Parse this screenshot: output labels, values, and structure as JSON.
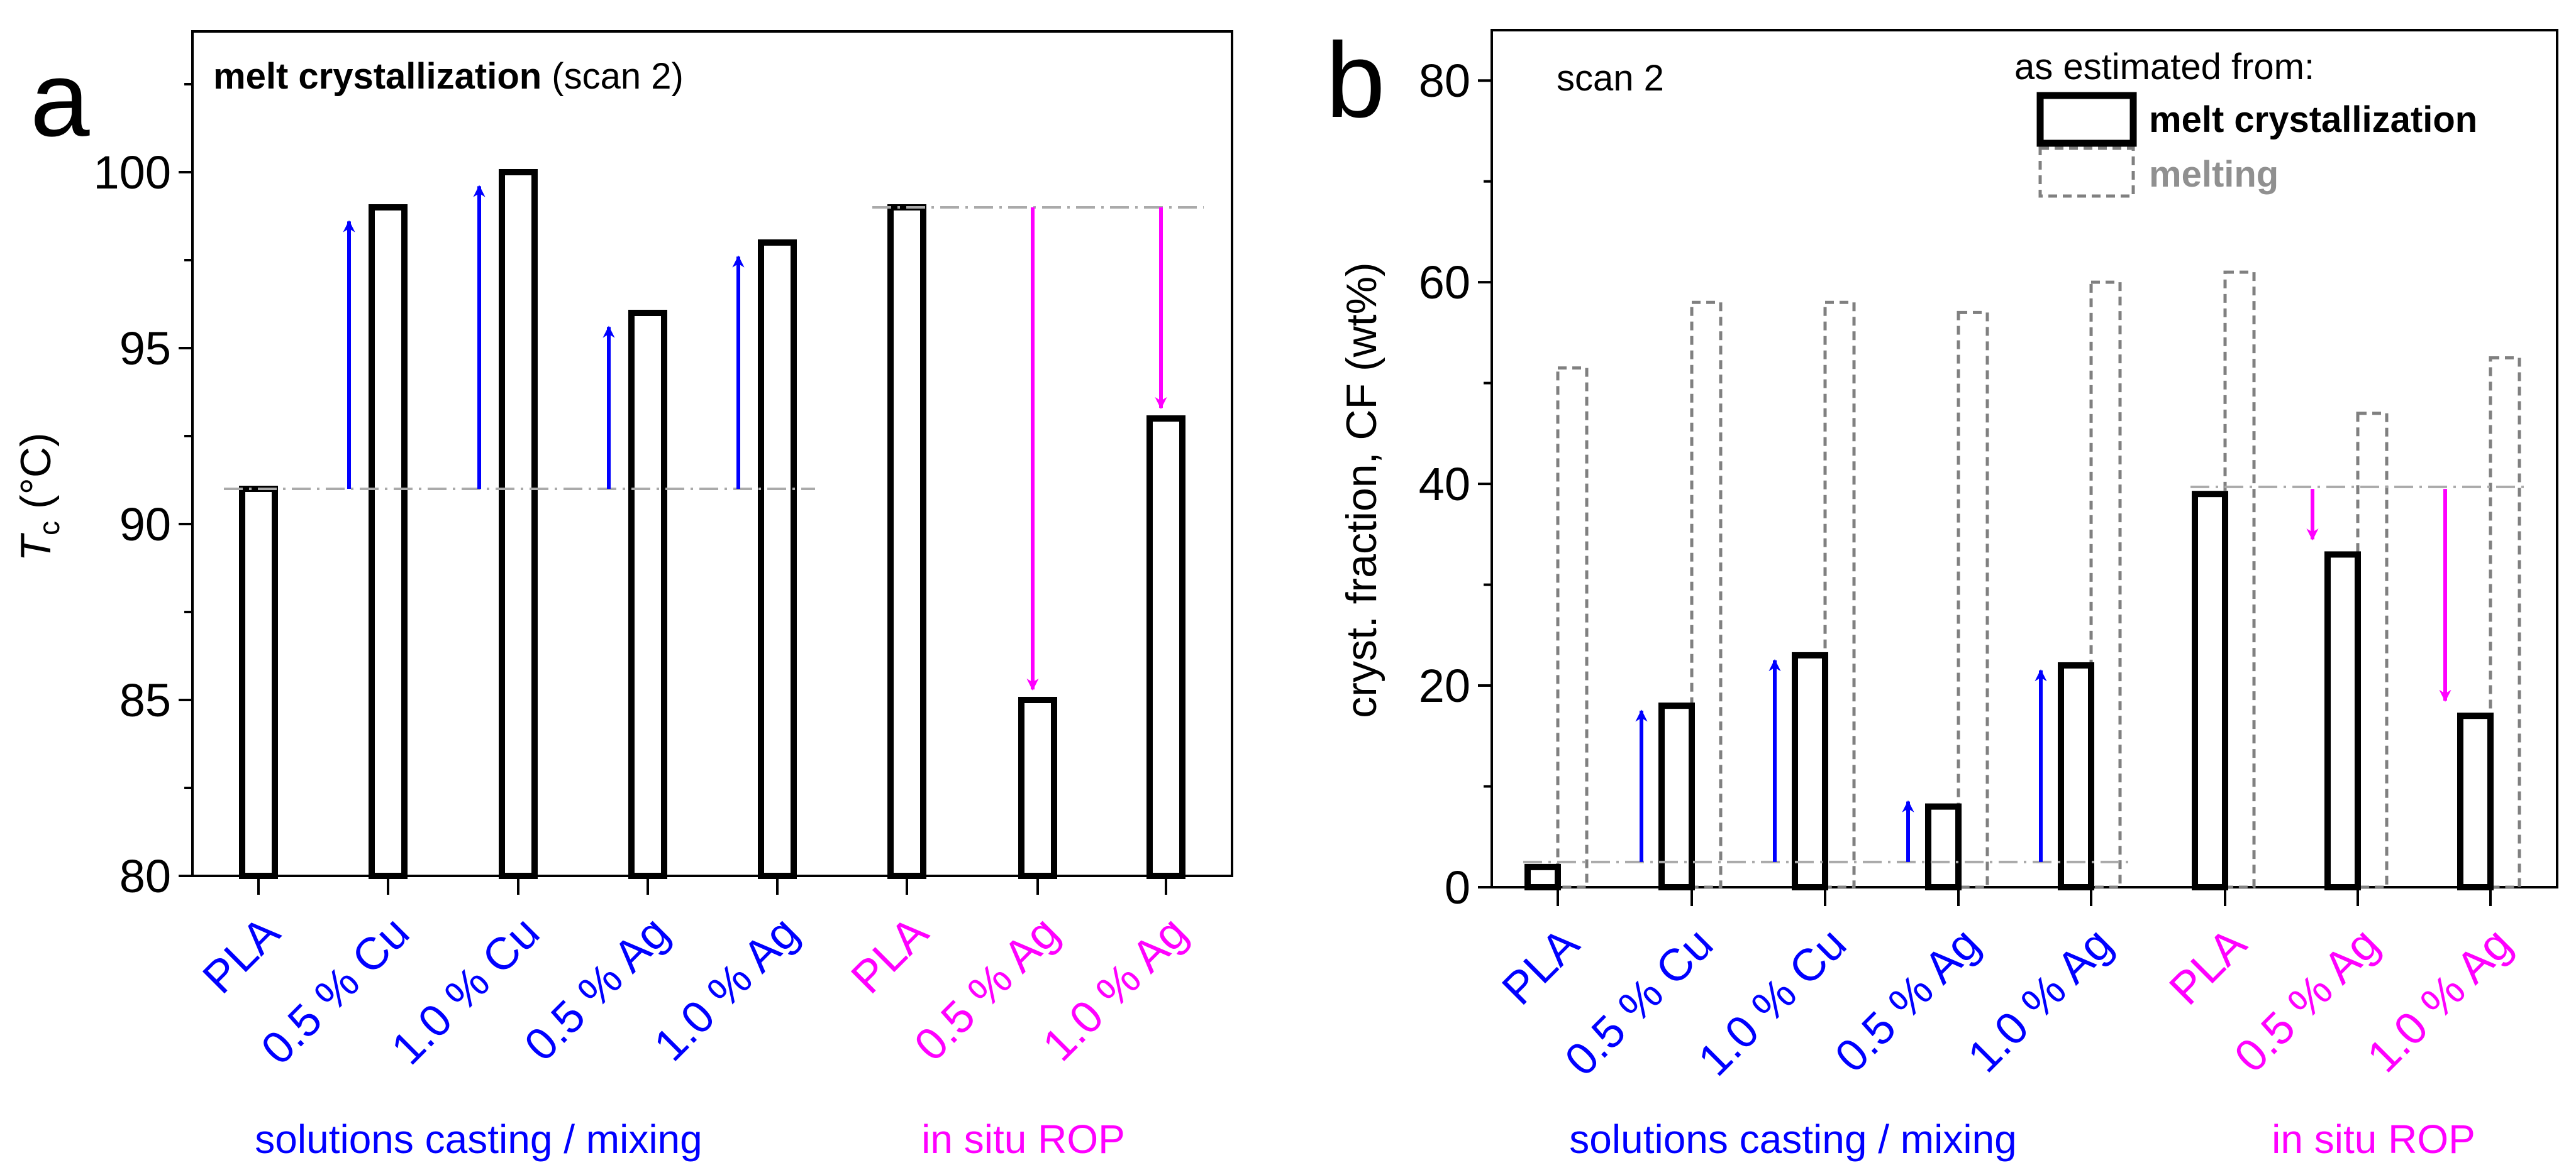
{
  "colors": {
    "solution": "#0000ff",
    "rop": "#ff00ff",
    "ref_line": "#aaaaaa",
    "melting": "#808080",
    "axis": "#000000"
  },
  "chart_data": [
    {
      "panel": "a",
      "type": "bar",
      "title_bold": "melt crystallization",
      "title_rest": " (scan 2)",
      "ylabel_main": "T",
      "ylabel_sub": "c",
      "ylabel_unit": " (°C)",
      "ylim": [
        80,
        104
      ],
      "yticks": [
        80,
        85,
        90,
        95,
        100
      ],
      "yminor_step": 2.5,
      "categories": [
        "PLA",
        "0.5 % Cu",
        "1.0 % Cu",
        "0.5 % Ag",
        "1.0 % Ag",
        "PLA",
        "0.5 % Ag",
        "1.0 % Ag"
      ],
      "category_groups": [
        "solution",
        "solution",
        "solution",
        "solution",
        "solution",
        "rop",
        "rop",
        "rop"
      ],
      "group_labels": {
        "solution": "solutions casting / mixing",
        "rop": "in situ ROP"
      },
      "series": [
        {
          "name": "melt crystallization",
          "values": [
            91,
            99,
            100,
            96,
            98,
            99,
            85,
            93
          ]
        }
      ],
      "reference_lines": [
        {
          "value": 91,
          "from": 0,
          "to": 4
        },
        {
          "value": 99,
          "from": 5,
          "to": 7
        }
      ],
      "arrows": [
        {
          "cat": 1,
          "from": 91,
          "to": 98.6,
          "group": "solution"
        },
        {
          "cat": 2,
          "from": 91,
          "to": 99.6,
          "group": "solution"
        },
        {
          "cat": 3,
          "from": 91,
          "to": 95.6,
          "group": "solution"
        },
        {
          "cat": 4,
          "from": 91,
          "to": 97.6,
          "group": "solution"
        },
        {
          "cat": 6,
          "from": 99,
          "to": 85.3,
          "group": "rop"
        },
        {
          "cat": 7,
          "from": 99,
          "to": 93.3,
          "group": "rop"
        }
      ]
    },
    {
      "panel": "b",
      "type": "bar",
      "title": "scan 2",
      "ylabel": "cryst. fraction, CF (wt%)",
      "ylim": [
        0,
        85
      ],
      "yticks": [
        0,
        20,
        40,
        60,
        80
      ],
      "yminor_step": 10,
      "categories": [
        "PLA",
        "0.5 % Cu",
        "1.0 % Cu",
        "0.5 % Ag",
        "1.0 % Ag",
        "PLA",
        "0.5 % Ag",
        "1.0 % Ag"
      ],
      "category_groups": [
        "solution",
        "solution",
        "solution",
        "solution",
        "solution",
        "rop",
        "rop",
        "rop"
      ],
      "group_labels": {
        "solution": "solutions casting / mixing",
        "rop": "in situ ROP"
      },
      "legend": {
        "heading": "as estimated from:",
        "position": "top-right"
      },
      "series": [
        {
          "name": "melt crystallization",
          "style": "solid",
          "values": [
            2,
            18,
            23,
            8,
            22,
            39,
            33,
            17
          ]
        },
        {
          "name": "melting",
          "style": "dashed",
          "values": [
            51.5,
            58,
            58,
            57,
            60,
            61,
            47,
            52.5
          ]
        }
      ],
      "reference_lines": [
        {
          "value": 2.5,
          "from": 0,
          "to": 4
        },
        {
          "value": 39.7,
          "from": 5,
          "to": 7
        }
      ],
      "arrows": [
        {
          "cat": 1,
          "from": 2.5,
          "to": 17.5,
          "group": "solution"
        },
        {
          "cat": 2,
          "from": 2.5,
          "to": 22.5,
          "group": "solution"
        },
        {
          "cat": 3,
          "from": 2.5,
          "to": 8.5,
          "group": "solution"
        },
        {
          "cat": 4,
          "from": 2.5,
          "to": 21.5,
          "group": "solution"
        },
        {
          "cat": 6,
          "from": 39.5,
          "to": 34.5,
          "group": "rop"
        },
        {
          "cat": 7,
          "from": 39.5,
          "to": 18.5,
          "group": "rop"
        }
      ]
    }
  ]
}
